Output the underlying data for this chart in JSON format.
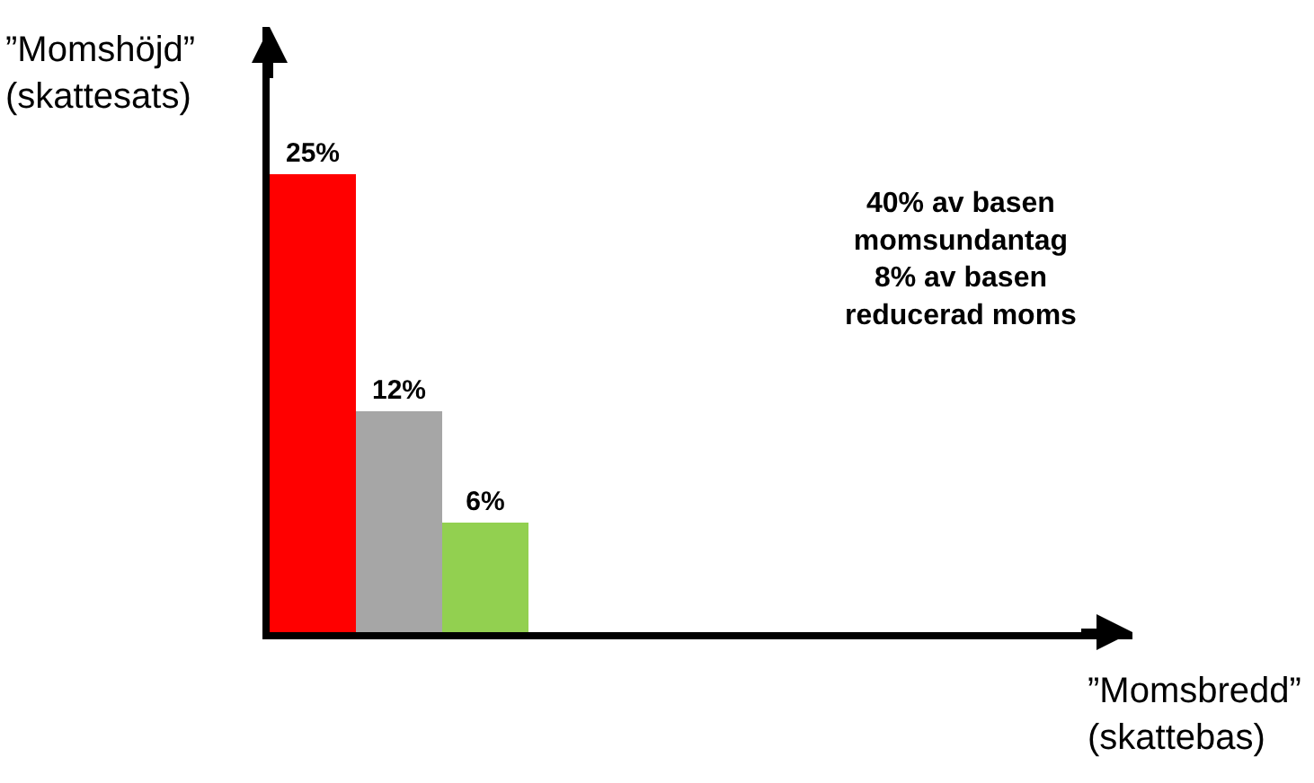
{
  "chart_data": {
    "type": "bar",
    "categories": [
      null,
      null,
      null
    ],
    "values": [
      25,
      12,
      6
    ],
    "colors": [
      "#ff0000",
      "#a6a6a6",
      "#92d050"
    ],
    "value_labels": [
      "25%",
      "12%",
      "6%"
    ],
    "annotations": [
      "”Momshöjd”\n(skattesats)",
      "40% av basen\nmomsundantag\n8% av basen\nreducerad moms",
      "”Momsbredd”\n(skattebas)"
    ],
    "legend": false,
    "tick_labels": false
  }
}
